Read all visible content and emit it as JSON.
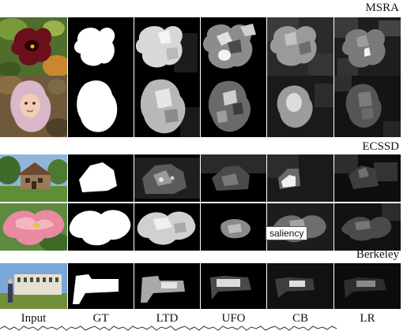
{
  "datasets": {
    "msra": "MSRA",
    "ecssd": "ECSSD",
    "berkeley": "Berkeley"
  },
  "columns": [
    "Input",
    "GT",
    "LTD",
    "UFO",
    "CB",
    "LR"
  ],
  "tooltip": "saliency"
}
